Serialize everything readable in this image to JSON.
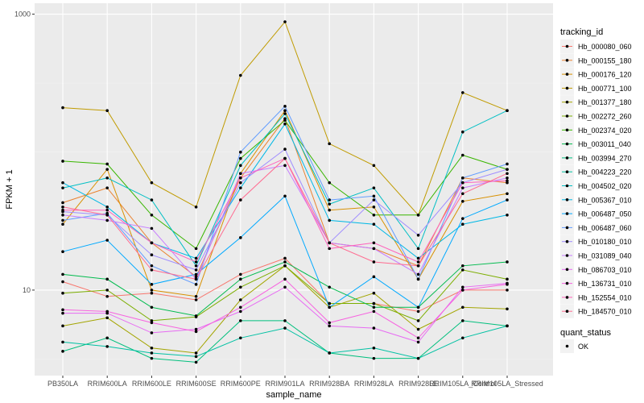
{
  "chart_data": {
    "type": "line",
    "xlabel": "sample_name",
    "ylabel": "FPKM + 1",
    "y_scale": "log10",
    "ylim": [
      2.4,
      1200
    ],
    "y_ticks": [
      {
        "value": 10,
        "label": "10"
      },
      {
        "value": 1000,
        "label": "1000"
      }
    ],
    "grid": true,
    "legend_position": "right",
    "categories": [
      "PB350LA",
      "RRIM600LA",
      "RRIM600LE",
      "RRIM600SE",
      "RRIM600PE",
      "RRIM901LA",
      "RRIM928BA",
      "RRIM928LA",
      "RRIM928LE",
      "RRIM105LA_Control",
      "RRIM105LA_Stressed"
    ],
    "color_legend_title": "tracking_id",
    "series": [
      {
        "name": "Hb_000080_060",
        "color": "#F8766D",
        "values": [
          11.5,
          9.0,
          9.5,
          8.5,
          13,
          17,
          8,
          8,
          7,
          10,
          10
        ]
      },
      {
        "name": "Hb_000155_180",
        "color": "#EA8331",
        "values": [
          43,
          55,
          22,
          12.5,
          65,
          175,
          22,
          20,
          15,
          65,
          60
        ]
      },
      {
        "name": "Hb_000176_120",
        "color": "#D89000",
        "values": [
          30,
          75,
          10,
          9,
          70,
          200,
          38,
          40,
          12,
          44,
          50
        ]
      },
      {
        "name": "Hb_000771_100",
        "color": "#C09B00",
        "values": [
          210,
          200,
          60,
          40,
          360,
          880,
          115,
          80,
          35,
          270,
          200
        ]
      },
      {
        "name": "Hb_001377_180",
        "color": "#A3A500",
        "values": [
          5.5,
          6.3,
          3.8,
          3.5,
          8.5,
          15,
          7.5,
          9.5,
          5.2,
          7.5,
          7.3
        ]
      },
      {
        "name": "Hb_002272_260",
        "color": "#7CAE00",
        "values": [
          9.5,
          10,
          6,
          6.4,
          10.5,
          15,
          8,
          8,
          6,
          14,
          12
        ]
      },
      {
        "name": "Hb_002374_020",
        "color": "#39B600",
        "values": [
          86,
          82,
          35,
          20,
          90,
          170,
          60,
          35,
          35,
          95,
          75
        ]
      },
      {
        "name": "Hb_003011_040",
        "color": "#00BB4E",
        "values": [
          13,
          12,
          7.5,
          6.5,
          12,
          16,
          10.5,
          7.5,
          7.5,
          15,
          16
        ]
      },
      {
        "name": "Hb_003994_270",
        "color": "#00BF7D",
        "values": [
          3.6,
          4.5,
          3.2,
          3.0,
          6,
          6,
          3.5,
          3.2,
          3.2,
          6,
          5.5
        ]
      },
      {
        "name": "Hb_004223_220",
        "color": "#00C1A3",
        "values": [
          4.2,
          3.9,
          3.5,
          3.3,
          4.5,
          5.3,
          3.5,
          3.8,
          3.2,
          4.5,
          5.5
        ]
      },
      {
        "name": "Hb_004502_020",
        "color": "#00BFC4",
        "values": [
          55,
          65,
          45,
          15,
          80,
          190,
          42,
          55,
          20,
          140,
          200
        ]
      },
      {
        "name": "Hb_005367_010",
        "color": "#00B8E5",
        "values": [
          60,
          40,
          22,
          17,
          55,
          160,
          32,
          30,
          17,
          30,
          35
        ]
      },
      {
        "name": "Hb_006487_050",
        "color": "#00A9FF",
        "values": [
          19,
          23,
          11,
          13,
          24,
          48,
          7.5,
          12.5,
          7.5,
          33,
          45
        ]
      },
      {
        "name": "Hb_006487_060",
        "color": "#619CFF",
        "values": [
          32,
          36,
          15,
          11,
          100,
          215,
          45,
          48,
          12,
          65,
          82
        ]
      },
      {
        "name": "Hb_010180_010",
        "color": "#9F8CFF",
        "values": [
          37,
          35,
          18,
          14,
          60,
          105,
          22,
          45,
          25,
          60,
          75
        ]
      },
      {
        "name": "Hb_031089_040",
        "color": "#C77CFF",
        "values": [
          35,
          32,
          28,
          12,
          70,
          80,
          22,
          20,
          13,
          55,
          65
        ]
      },
      {
        "name": "Hb_086703_010",
        "color": "#E76BF3",
        "values": [
          6.8,
          6.8,
          4.9,
          5.2,
          7,
          10.5,
          5.5,
          5.3,
          4.2,
          10.5,
          11.2
        ]
      },
      {
        "name": "Hb_136731_010",
        "color": "#F763E0",
        "values": [
          7.2,
          7.0,
          5.8,
          5.0,
          7.5,
          12,
          5.8,
          7.0,
          4.5,
          10,
          11
        ]
      },
      {
        "name": "Hb_152554_010",
        "color": "#FF62BC",
        "values": [
          38,
          38,
          22,
          16,
          65,
          90,
          20,
          22,
          16,
          60,
          62
        ]
      },
      {
        "name": "Hb_184570_010",
        "color": "#FF6C91",
        "values": [
          40,
          35,
          14,
          12,
          45,
          90,
          22,
          16,
          15,
          50,
          70
        ]
      }
    ],
    "shape_legend": {
      "title": "quant_status",
      "items": [
        "OK"
      ]
    }
  }
}
